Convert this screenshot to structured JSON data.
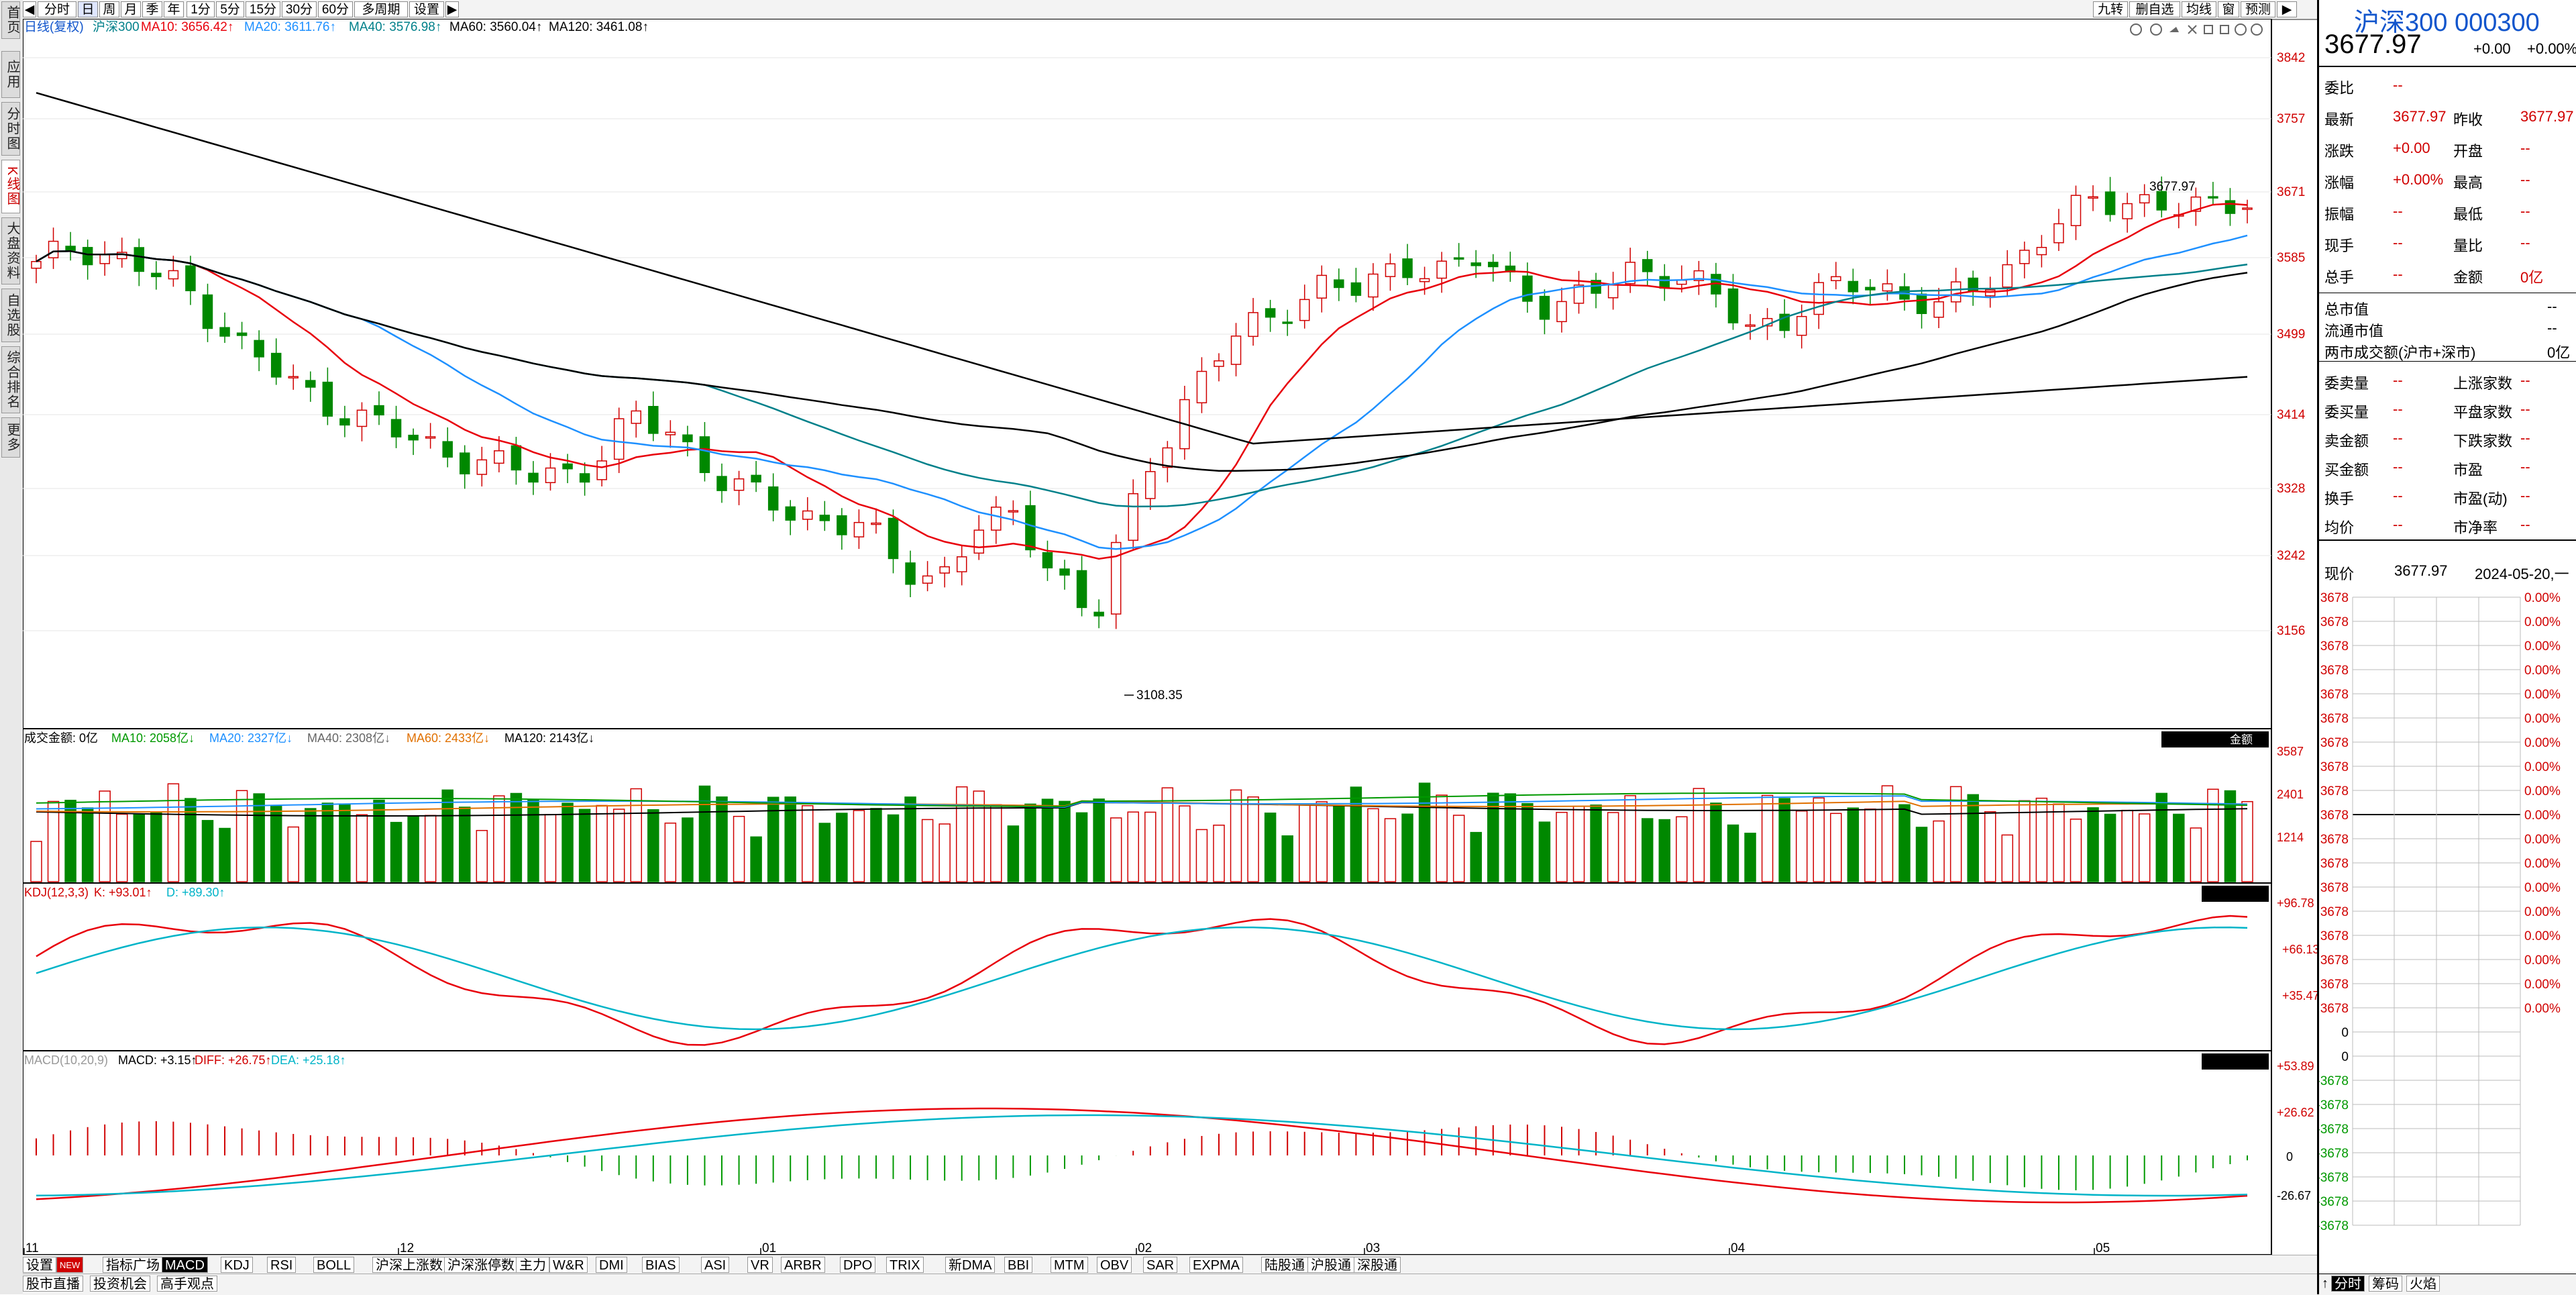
{
  "toolbar": {
    "buttons": [
      "分时",
      "日",
      "周",
      "月",
      "季",
      "年",
      "1分",
      "5分",
      "15分",
      "30分",
      "60分",
      "多周期",
      "设置"
    ],
    "active": "日",
    "right_buttons": [
      "九转",
      "删自选",
      "均线",
      "窗",
      "预测"
    ]
  },
  "left_rail": [
    "首页",
    "应用",
    "分时图",
    "K线图",
    "大盘资料",
    "自选股",
    "综合排名",
    "更多"
  ],
  "main_legend": {
    "period": "日线(复权)",
    "name": "沪深300",
    "ma10": "MA10: 3656.42↑",
    "ma20": "MA20: 3611.76↑",
    "ma40": "MA40: 3576.98↑",
    "ma60": "MA60: 3560.04↑",
    "ma120": "MA120: 3461.08↑"
  },
  "price_axis": [
    "3842",
    "3757",
    "3671",
    "3585",
    "3499",
    "3414",
    "3328",
    "3242",
    "3156"
  ],
  "annotations": {
    "high_label": "3677.97",
    "low_label": "3108.35"
  },
  "volume_legend": {
    "title": "成交金额: 0亿",
    "ma10": "MA10: 2058亿↓",
    "ma20": "MA20: 2327亿↓",
    "ma40": "MA40: 2308亿↓",
    "ma60": "MA60: 2433亿↓",
    "ma120": "MA120: 2143亿↓",
    "axis": [
      "3587",
      "2401",
      "1214"
    ],
    "badge": "金额"
  },
  "kdj_legend": {
    "title": "KDJ(12,3,3)",
    "k": "K: +93.01↑",
    "d": "D: +89.30↑",
    "axis": [
      "+96.78",
      "+66.13",
      "+35.47"
    ]
  },
  "macd_legend": {
    "title": "MACD(10,20,9)",
    "macd": "MACD: +3.15↑",
    "diff": "DIFF: +26.75↑",
    "dea": "DEA: +25.18↑",
    "axis": [
      "+53.89",
      "+26.62",
      "0",
      "-26.67"
    ]
  },
  "date_axis": [
    "11",
    "12",
    "01",
    "02",
    "03",
    "04",
    "05"
  ],
  "bottom_tabs": [
    "设置",
    "NEW",
    "指标广场",
    "MACD",
    "KDJ",
    "RSI",
    "BOLL",
    "沪深上涨数",
    "沪深涨停数",
    "主力",
    "W&R",
    "DMI",
    "BIAS",
    "ASI",
    "VR",
    "ARBR",
    "DPO",
    "TRIX",
    "新DMA",
    "BBI",
    "MTM",
    "OBV",
    "SAR",
    "EXPMA",
    "陆股通",
    "沪股通",
    "深股通"
  ],
  "bottom_tabs_active": "MACD",
  "bottom_tabs2": [
    "股市直播",
    "投资机会",
    "高手观点"
  ],
  "quote": {
    "title": "沪深300 000300",
    "price": "3677.97",
    "change": "+0.00",
    "change_pct": "+0.00%",
    "rows_a": [
      {
        "l1": "委比",
        "v1": "--",
        "l2": "",
        "v2": ""
      },
      {
        "l1": "最新",
        "v1": "3677.97",
        "l2": "昨收",
        "v2": "3677.97"
      },
      {
        "l1": "涨跌",
        "v1": "+0.00",
        "l2": "开盘",
        "v2": "--"
      },
      {
        "l1": "涨幅",
        "v1": "+0.00%",
        "l2": "最高",
        "v2": "--"
      },
      {
        "l1": "振幅",
        "v1": "--",
        "l2": "最低",
        "v2": "--"
      },
      {
        "l1": "现手",
        "v1": "--",
        "l2": "量比",
        "v2": "--"
      },
      {
        "l1": "总手",
        "v1": "--",
        "l2": "金额",
        "v2": "0亿"
      }
    ],
    "rows_b": [
      "总市值",
      "流通市值",
      "两市成交额(沪市+深市)"
    ],
    "rows_b_vals": [
      "--",
      "--",
      "0亿"
    ],
    "rows_c": [
      {
        "l1": "委卖量",
        "v1": "--",
        "l2": "上涨家数",
        "v2": "--"
      },
      {
        "l1": "委买量",
        "v1": "--",
        "l2": "平盘家数",
        "v2": "--"
      },
      {
        "l1": "卖金额",
        "v1": "--",
        "l2": "下跌家数",
        "v2": "--"
      },
      {
        "l1": "买金额",
        "v1": "--",
        "l2": "市盈",
        "v2": "--"
      },
      {
        "l1": "换手",
        "v1": "--",
        "l2": "市盈(动)",
        "v2": "--"
      },
      {
        "l1": "均价",
        "v1": "--",
        "l2": "市净率",
        "v2": "--"
      }
    ],
    "now_label": "现价",
    "now_price": "3677.97",
    "now_date": "2024-05-20,一",
    "mini_left": [
      "3678",
      "3678",
      "3678",
      "3678",
      "3678",
      "3678",
      "3678",
      "3678",
      "3678",
      "3678",
      "3678",
      "3678",
      "3678",
      "3678",
      "3678",
      "3678",
      "3678",
      "3678",
      "0",
      "0",
      "-3678",
      "-3678",
      "-3678",
      "-3678",
      "-3678",
      "-3678",
      "-3678"
    ],
    "mini_right": [
      "0.00%",
      "0.00%",
      "0.00%",
      "0.00%",
      "0.00%",
      "0.00%",
      "0.00%",
      "0.00%",
      "0.00%",
      "0.00%",
      "0.00%",
      "0.00%",
      "0.00%",
      "0.00%",
      "0.00%",
      "0.00%",
      "0.00%",
      "0.00%"
    ],
    "bottom_tabs": [
      "分时",
      "筹码",
      "火焰"
    ]
  },
  "colors": {
    "up": "#d00000",
    "down": "#008800",
    "ma10": "#e8000b",
    "ma20": "#1e90ff",
    "ma40": "#00808a",
    "ma60": "#000000",
    "ma120": "#000000"
  }
}
